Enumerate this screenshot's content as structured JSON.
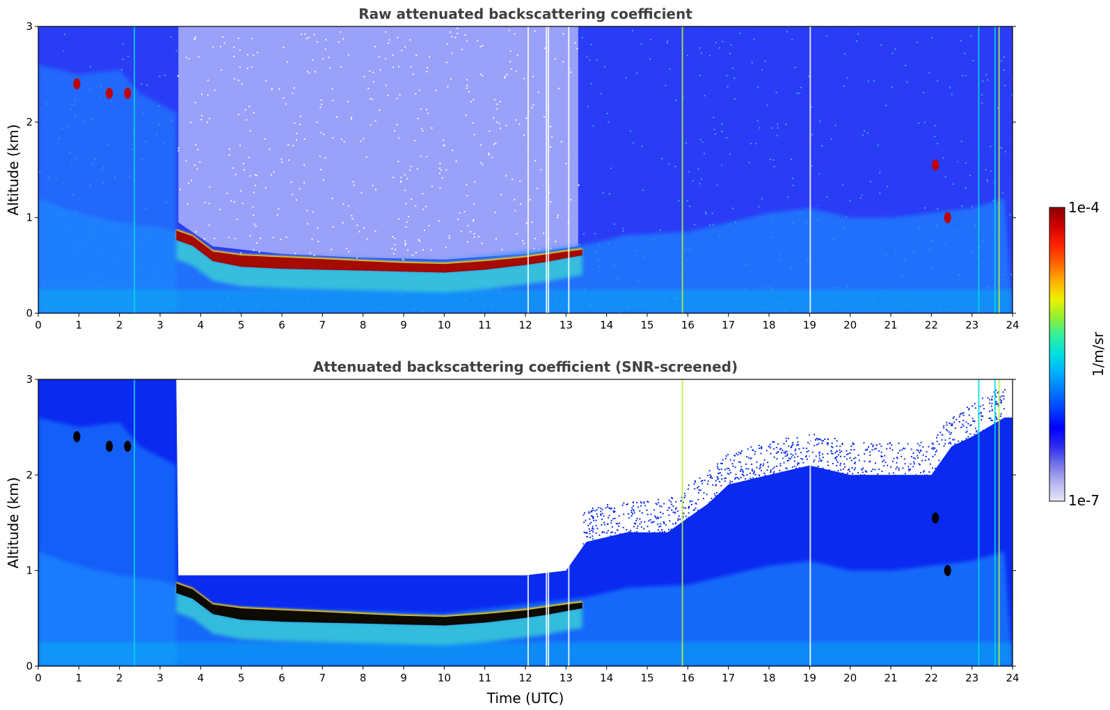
{
  "chart_data": [
    {
      "type": "heatmap",
      "title": "Raw attenuated backscattering coefficient",
      "xlabel": "",
      "ylabel": "Altitude (km)",
      "xlim": [
        0,
        24
      ],
      "ylim": [
        0,
        3
      ],
      "xticks": [
        "0",
        "1",
        "2",
        "3",
        "4",
        "5",
        "6",
        "7",
        "8",
        "9",
        "10",
        "11",
        "12",
        "13",
        "14",
        "15",
        "16",
        "17",
        "18",
        "19",
        "20",
        "21",
        "22",
        "23",
        "24"
      ],
      "yticks": [
        "0",
        "1",
        "2",
        "3"
      ],
      "features": {
        "cloud_layer_top_km": [
          [
            3.4,
            0.88
          ],
          [
            3.8,
            0.82
          ],
          [
            4.3,
            0.66
          ],
          [
            5,
            0.62
          ],
          [
            6,
            0.6
          ],
          [
            7,
            0.58
          ],
          [
            8,
            0.56
          ],
          [
            9,
            0.54
          ],
          [
            10,
            0.53
          ],
          [
            11,
            0.56
          ],
          [
            12,
            0.6
          ],
          [
            12.5,
            0.63
          ],
          [
            13,
            0.66
          ],
          [
            13.4,
            0.68
          ]
        ],
        "cloud_layer_base_km": [
          [
            3.4,
            0.78
          ],
          [
            3.8,
            0.72
          ],
          [
            4.3,
            0.56
          ],
          [
            5,
            0.5
          ],
          [
            6,
            0.48
          ],
          [
            7,
            0.47
          ],
          [
            8,
            0.46
          ],
          [
            9,
            0.45
          ],
          [
            10,
            0.44
          ],
          [
            11,
            0.47
          ],
          [
            12,
            0.52
          ],
          [
            12.5,
            0.55
          ],
          [
            13,
            0.59
          ],
          [
            13.4,
            0.62
          ]
        ],
        "boundary_layer_top_km": [
          [
            0,
            1.2
          ],
          [
            1,
            1.05
          ],
          [
            2,
            0.95
          ],
          [
            3,
            0.9
          ],
          [
            3.4,
            0.85
          ],
          [
            4.3,
            0.62
          ],
          [
            10,
            0.55
          ],
          [
            13.5,
            0.72
          ],
          [
            14.5,
            0.82
          ],
          [
            16,
            0.85
          ],
          [
            17,
            0.95
          ],
          [
            18,
            1.05
          ],
          [
            19,
            1.1
          ],
          [
            19.5,
            1.05
          ],
          [
            20,
            1.0
          ],
          [
            21,
            1.0
          ],
          [
            22,
            1.05
          ],
          [
            23,
            1.1
          ],
          [
            23.8,
            1.2
          ]
        ],
        "vertical_streaks_hour": [
          2.35,
          12.05,
          12.5,
          12.55,
          13.05,
          15.85,
          19.0,
          23.15,
          23.55,
          23.65
        ],
        "night_aerosol_top_km": 2.6
      }
    },
    {
      "type": "heatmap",
      "title": "Attenuated backscattering coefficient (SNR-screened)",
      "xlabel": "Time (UTC)",
      "ylabel": "Altitude (km)",
      "xlim": [
        0,
        24
      ],
      "ylim": [
        0,
        3
      ],
      "xticks": [
        "0",
        "1",
        "2",
        "3",
        "4",
        "5",
        "6",
        "7",
        "8",
        "9",
        "10",
        "11",
        "12",
        "13",
        "14",
        "15",
        "16",
        "17",
        "18",
        "19",
        "20",
        "21",
        "22",
        "23",
        "24"
      ],
      "yticks": [
        "0",
        "1",
        "2",
        "3"
      ],
      "features": {
        "screened_top_km": [
          [
            0,
            3
          ],
          [
            3.4,
            3
          ],
          [
            3.45,
            0.95
          ],
          [
            12,
            0.95
          ],
          [
            13,
            1.0
          ],
          [
            13.5,
            1.3
          ],
          [
            14.5,
            1.4
          ],
          [
            15.5,
            1.4
          ],
          [
            16.5,
            1.7
          ],
          [
            17,
            1.9
          ],
          [
            18,
            2.0
          ],
          [
            19,
            2.1
          ],
          [
            20,
            2.0
          ],
          [
            21,
            2.0
          ],
          [
            22,
            2.0
          ],
          [
            22.5,
            2.3
          ],
          [
            23,
            2.4
          ],
          [
            23.8,
            2.6
          ]
        ],
        "saturated_cloud": true
      }
    }
  ],
  "colorbar": {
    "label": "1/m/sr",
    "max_label": "1e-4",
    "min_label": "1e-7",
    "scale": "log",
    "range": [
      1e-07,
      0.0001
    ],
    "colormap": [
      "#e8e8f8",
      "#b4b4ee",
      "#7474e8",
      "#2a2af0",
      "#0000ff",
      "#0040ff",
      "#0078ff",
      "#00b0ff",
      "#00e0e0",
      "#30f0a0",
      "#90f030",
      "#f0f000",
      "#ffb000",
      "#ff6000",
      "#ff2000",
      "#d00000",
      "#8b0000"
    ]
  },
  "colors": {
    "background_noise": "#0a2af0",
    "aerosol": "#1e8cff",
    "surface_layer": "#00c8f0",
    "cloud_edge": "#ffe000",
    "cloud_core": "#a00000",
    "saturated": "#000000"
  }
}
